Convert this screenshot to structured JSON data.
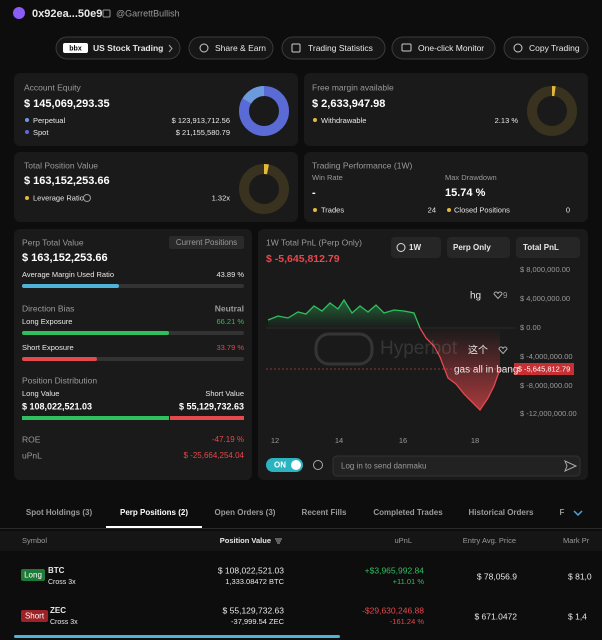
{
  "header": {
    "address": "0x92ea...50e9",
    "handle": "@GarrettBullish"
  },
  "toolbar": {
    "logo": "bbx",
    "buttons": [
      "US Stock Trading",
      "Share & Earn",
      "Trading Statistics",
      "One-click Monitor",
      "Copy Trading"
    ]
  },
  "account_equity": {
    "label": "Account Equity",
    "value": "$ 145,069,293.35",
    "items": [
      {
        "name": "Perpetual",
        "value": "$ 123,913,712.56"
      },
      {
        "name": "Spot",
        "value": "$ 21,155,580.79"
      }
    ]
  },
  "free_margin": {
    "label": "Free margin available",
    "value": "$ 2,633,947.98",
    "items": [
      {
        "name": "Withdrawable",
        "value": "2.13 %"
      }
    ]
  },
  "total_position": {
    "label": "Total Position Value",
    "value": "$ 163,152,253.66",
    "items": [
      {
        "name": "Leverage Ratio",
        "value": "1.32x"
      }
    ]
  },
  "performance": {
    "label": "Trading Performance (1W)",
    "win_rate_label": "Win Rate",
    "win_rate": "-",
    "drawdown_label": "Max Drawdown",
    "drawdown": "15.74 %",
    "items": [
      {
        "name": "Trades",
        "value": "24"
      },
      {
        "name": "Closed Positions",
        "value": "0"
      }
    ]
  },
  "perp_panel": {
    "label": "Perp Total Value",
    "tag": "Current Positions",
    "value": "$ 163,152,253.66",
    "margin_label": "Average Margin Used Ratio",
    "margin_value": "43.89 %",
    "bias_label": "Direction Bias",
    "bias_value": "Neutral",
    "long_label": "Long Exposure",
    "long_value": "66.21 %",
    "short_label": "Short Exposure",
    "short_value": "33.79 %",
    "dist_label": "Position Distribution",
    "long_value_label": "Long Value",
    "short_value_label": "Short Value",
    "long_amount": "$ 108,022,521.03",
    "short_amount": "$ 55,129,732.63",
    "roe_label": "ROE",
    "roe_value": "-47.19 %",
    "upnl_label": "uPnL",
    "upnl_value": "$ -25,664,254.04"
  },
  "pnl_panel": {
    "title": "1W Total PnL (Perp Only)",
    "value": "$ -5,645,812.79",
    "dropdowns": [
      "1W",
      "Perp Only",
      "Total PnL"
    ],
    "y_labels": [
      "$ 8,000,000.00",
      "$ 4,000,000.00",
      "$ 0.00",
      "$ -4,000,000.00",
      "$ -8,000,000.00",
      "$ -12,000,000.00"
    ],
    "x_labels": [
      "12",
      "14",
      "16",
      "18"
    ],
    "current_label": "$ -5,645,812.79",
    "watermark": "Hyperbot",
    "danmaku": [
      {
        "text": "hg",
        "likes": "9"
      },
      {
        "text": "这个"
      },
      {
        "text": "gas all in bang"
      }
    ],
    "toggle": "ON",
    "input_placeholder": "Log in to send danmaku"
  },
  "tabs": [
    "Spot Holdings (3)",
    "Perp Positions (2)",
    "Open Orders (3)",
    "Recent Fills",
    "Completed Trades",
    "Historical Orders",
    "F"
  ],
  "table": {
    "headers": [
      "Symbol",
      "Position Value",
      "uPnL",
      "Entry Avg. Price",
      "Mark Pr"
    ],
    "rows": [
      {
        "side": "Long",
        "symbol": "BTC",
        "margin": "Cross 3x",
        "value": "$ 108,022,521.03",
        "size": "1,333.08472 BTC",
        "upnl": "+$3,965,992.84",
        "upnl_pct": "+11.01 %",
        "entry": "$ 78,056.9",
        "mark": "$ 81,0"
      },
      {
        "side": "Short",
        "symbol": "ZEC",
        "margin": "Cross 3x",
        "value": "$ 55,129,732.63",
        "size": "-37,999.54 ZEC",
        "upnl": "-$29,630,246.88",
        "upnl_pct": "-161.24 %",
        "entry": "$ 671.0472",
        "mark": "$ 1,4"
      }
    ]
  }
}
